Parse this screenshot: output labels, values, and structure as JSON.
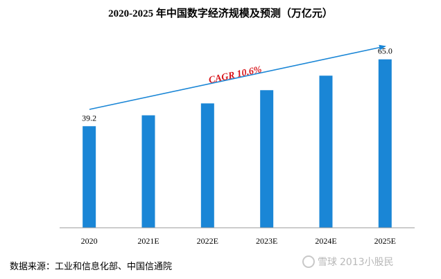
{
  "chart_data": {
    "type": "bar",
    "title": "2020-2025 年中国数字经济规模及预测（万亿元）",
    "categories": [
      "2020",
      "2021E",
      "2022E",
      "2023E",
      "2024E",
      "2025E"
    ],
    "values": [
      39.2,
      43.4,
      48.0,
      53.1,
      58.7,
      65.0
    ],
    "data_labels": [
      "39.2",
      "",
      "",
      "",
      "",
      "65.0"
    ],
    "ylim": [
      0,
      70
    ],
    "grid": false,
    "bar_color": "#1a86d6",
    "annotation": {
      "text": "CAGR  10.6%",
      "color": "#d7141a",
      "arrow_color": "#1a86d6"
    },
    "xlabel": "",
    "ylabel": ""
  },
  "source": "数据来源：工业和信息化部、中国信通院",
  "watermark": {
    "brand": "雪球",
    "user": "2013小股民"
  }
}
